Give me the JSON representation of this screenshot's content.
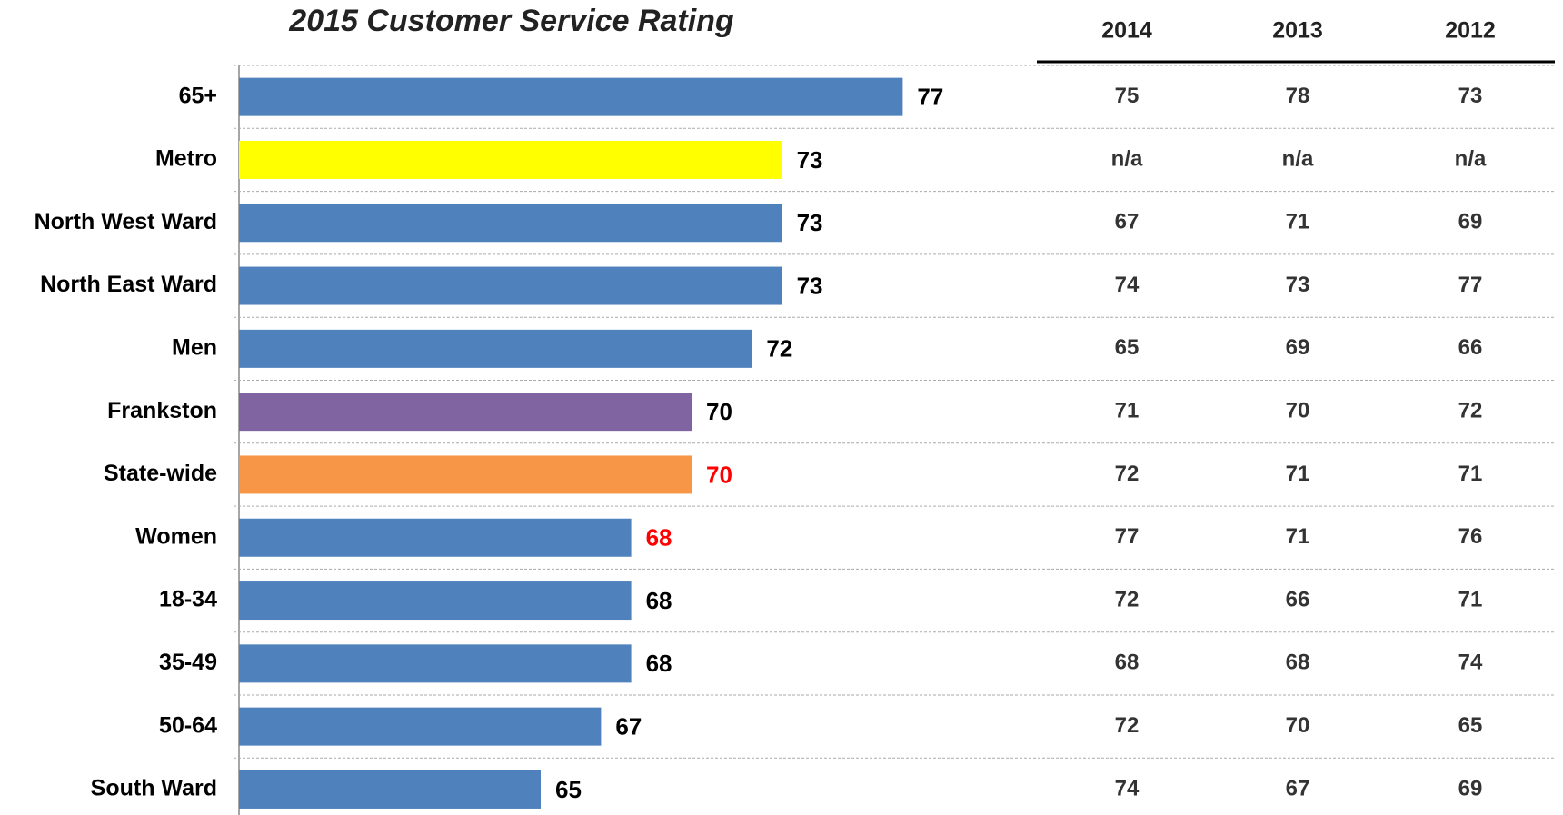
{
  "chart_data": {
    "type": "bar",
    "orientation": "horizontal",
    "title": "2015 Customer Service Rating",
    "categories": [
      "65+",
      "Metro",
      "North West Ward",
      "North East Ward",
      "Men",
      "Frankston",
      "State-wide",
      "Women",
      "18-34",
      "35-49",
      "50-64",
      "South Ward"
    ],
    "values": [
      77,
      73,
      73,
      73,
      72,
      70,
      70,
      68,
      68,
      68,
      67,
      65
    ],
    "colors": [
      "#4f81bd",
      "#ffff00",
      "#4f81bd",
      "#4f81bd",
      "#4f81bd",
      "#8064a2",
      "#f79646",
      "#4f81bd",
      "#4f81bd",
      "#4f81bd",
      "#4f81bd",
      "#4f81bd"
    ],
    "value_label_colors": [
      "#000000",
      "#000000",
      "#000000",
      "#000000",
      "#000000",
      "#000000",
      "#ff0000",
      "#ff0000",
      "#000000",
      "#000000",
      "#000000",
      "#000000"
    ],
    "xlim": [
      55,
      80
    ],
    "grid": true
  },
  "table": {
    "columns": [
      "2014",
      "2013",
      "2012"
    ],
    "rows": [
      [
        75,
        78,
        73
      ],
      [
        "n/a",
        "n/a",
        "n/a"
      ],
      [
        67,
        71,
        69
      ],
      [
        74,
        73,
        77
      ],
      [
        65,
        69,
        66
      ],
      [
        71,
        70,
        72
      ],
      [
        72,
        71,
        71
      ],
      [
        77,
        71,
        76
      ],
      [
        72,
        66,
        71
      ],
      [
        68,
        68,
        74
      ],
      [
        72,
        70,
        65
      ],
      [
        74,
        67,
        69
      ]
    ]
  }
}
